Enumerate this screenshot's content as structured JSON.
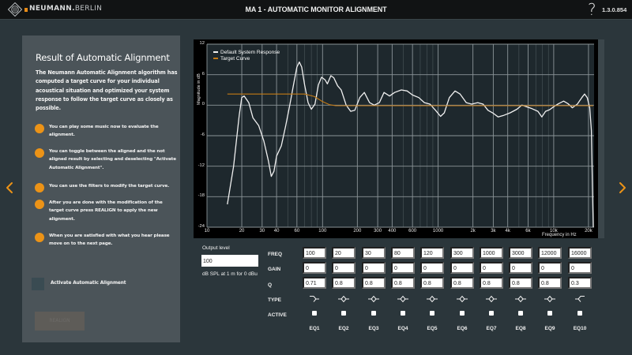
{
  "titlebar": {
    "brand_primary": "NEUMANN",
    "brand_sep": ".",
    "brand_secondary": "BERLIN",
    "title": "MA 1 - AUTOMATIC MONITOR ALIGNMENT",
    "help_label": "?",
    "version": "1.3.0.854"
  },
  "colors": {
    "accent": "#ec9317",
    "panel_bg": "#4b5459",
    "page_bg": "#2b363b",
    "titlebar_bg": "#111314",
    "chart_bg": "#1e282d",
    "response_curve": "#f0f0f0",
    "target_curve": "#c47a14"
  },
  "nav": {
    "prev_icon": "chevron-left-icon",
    "next_icon": "chevron-right-icon"
  },
  "panel": {
    "title": "Result of Automatic Alignment",
    "intro": "The Neumann Automatic Alignment algorithm has computed a target curve for your individual acoustical situation and optimized your system response to follow the target curve as closely as possible.",
    "hints": [
      "You can play some music now to evaluate the alignment.",
      "You can toggle between the aligned and the not aligned result by selecting and deselecting \"Activate Automatic Alignment\".",
      "You can use the filters to modify the target curve.",
      "After you are done with the modification of the target curve press REALIGN to apply the new alignment.",
      "When you are satisfied with what you hear please move on to the next page."
    ],
    "activate_label": "Activate Automatic Alignment",
    "activate_checked": false,
    "realign_label": "REALIGN",
    "realign_enabled": false
  },
  "chart_data": {
    "type": "line",
    "title": "",
    "xlabel": "Frequency in Hz",
    "ylabel": "Magnitude in dB",
    "x_scale": "log",
    "xlim": [
      10,
      22000
    ],
    "ylim": [
      -24,
      12
    ],
    "y_ticks": [
      12,
      6,
      0,
      -6,
      -12,
      -18,
      -24
    ],
    "x_ticks": [
      "10",
      "20",
      "30",
      "40",
      "60",
      "100",
      "200",
      "300",
      "400",
      "600",
      "1000",
      "2k",
      "3k",
      "4k",
      "6k",
      "10k",
      "20k"
    ],
    "grid": true,
    "legend_position": "top-left",
    "series": [
      {
        "name": "Default System Response",
        "color": "#f0f0f0",
        "points": [
          [
            15,
            -19.5
          ],
          [
            17,
            -12
          ],
          [
            19,
            -2
          ],
          [
            20,
            1.5
          ],
          [
            21,
            1.8
          ],
          [
            23,
            0.5
          ],
          [
            25,
            -2.5
          ],
          [
            28,
            -4
          ],
          [
            31,
            -7
          ],
          [
            34,
            -11
          ],
          [
            36,
            -14
          ],
          [
            38,
            -13
          ],
          [
            40,
            -10
          ],
          [
            44,
            -8
          ],
          [
            48,
            -4
          ],
          [
            52,
            0
          ],
          [
            56,
            4
          ],
          [
            60,
            7.5
          ],
          [
            63,
            8.5
          ],
          [
            66,
            7.5
          ],
          [
            70,
            4
          ],
          [
            75,
            0.5
          ],
          [
            80,
            -0.8
          ],
          [
            86,
            0.2
          ],
          [
            92,
            4
          ],
          [
            98,
            5.5
          ],
          [
            105,
            5
          ],
          [
            110,
            4.2
          ],
          [
            118,
            5.8
          ],
          [
            125,
            5.4
          ],
          [
            135,
            3.8
          ],
          [
            145,
            3
          ],
          [
            160,
            0
          ],
          [
            175,
            -1.2
          ],
          [
            190,
            -1
          ],
          [
            210,
            1.5
          ],
          [
            230,
            2.5
          ],
          [
            255,
            0.5
          ],
          [
            280,
            0
          ],
          [
            310,
            0.5
          ],
          [
            340,
            2.5
          ],
          [
            380,
            1.8
          ],
          [
            420,
            2.5
          ],
          [
            480,
            3
          ],
          [
            540,
            2.8
          ],
          [
            600,
            2
          ],
          [
            680,
            1.5
          ],
          [
            760,
            0.5
          ],
          [
            850,
            0.2
          ],
          [
            950,
            -1
          ],
          [
            1050,
            -2.2
          ],
          [
            1130,
            -1.5
          ],
          [
            1250,
            1.5
          ],
          [
            1400,
            2.8
          ],
          [
            1550,
            2.2
          ],
          [
            1750,
            0.5
          ],
          [
            1950,
            0.2
          ],
          [
            2200,
            0.5
          ],
          [
            2450,
            0.2
          ],
          [
            2700,
            -1
          ],
          [
            3000,
            -1.6
          ],
          [
            3300,
            -2.3
          ],
          [
            3700,
            -2
          ],
          [
            4200,
            -1.5
          ],
          [
            4800,
            -0.8
          ],
          [
            5300,
            0
          ],
          [
            5800,
            -0.3
          ],
          [
            6500,
            -0.7
          ],
          [
            7300,
            -1.2
          ],
          [
            7900,
            -2.3
          ],
          [
            8500,
            -1.2
          ],
          [
            9200,
            -0.9
          ],
          [
            10000,
            -0.3
          ],
          [
            11000,
            0.3
          ],
          [
            12200,
            0.8
          ],
          [
            13300,
            0.3
          ],
          [
            14500,
            -0.5
          ],
          [
            16000,
            0.2
          ],
          [
            17500,
            1.5
          ],
          [
            18500,
            2.2
          ],
          [
            19500,
            1.5
          ],
          [
            20500,
            -0.5
          ],
          [
            21200,
            -5
          ],
          [
            21600,
            -15
          ],
          [
            22000,
            -24
          ]
        ]
      },
      {
        "name": "Target Curve",
        "color": "#c47a14",
        "points": [
          [
            15,
            2.2
          ],
          [
            20,
            2.2
          ],
          [
            40,
            2.2
          ],
          [
            70,
            2.2
          ],
          [
            85,
            1.7
          ],
          [
            100,
            0.7
          ],
          [
            115,
            0.1
          ],
          [
            130,
            -0.1
          ],
          [
            200,
            -0.1
          ],
          [
            1000,
            -0.1
          ],
          [
            10000,
            -0.1
          ],
          [
            22000,
            -0.1
          ]
        ]
      }
    ]
  },
  "output": {
    "label": "Output level",
    "value": "100",
    "unit": "dB SPL at 1 m for 0 dBu"
  },
  "eq": {
    "row_labels": {
      "freq": "FREQ",
      "gain": "GAIN",
      "q": "Q",
      "type": "TYPE",
      "active": "ACTIVE"
    },
    "bands": [
      {
        "name": "EQ1",
        "freq": "100",
        "gain": "0",
        "q": "0.71",
        "type": "high-pass-icon",
        "active": false
      },
      {
        "name": "EQ2",
        "freq": "20",
        "gain": "0",
        "q": "0.8",
        "type": "peak-icon",
        "active": false
      },
      {
        "name": "EQ3",
        "freq": "30",
        "gain": "0",
        "q": "0.8",
        "type": "peak-icon",
        "active": false
      },
      {
        "name": "EQ4",
        "freq": "80",
        "gain": "0",
        "q": "0.8",
        "type": "peak-icon",
        "active": false
      },
      {
        "name": "EQ5",
        "freq": "120",
        "gain": "0",
        "q": "0.8",
        "type": "peak-icon",
        "active": false
      },
      {
        "name": "EQ6",
        "freq": "300",
        "gain": "0",
        "q": "0.8",
        "type": "peak-icon",
        "active": false
      },
      {
        "name": "EQ7",
        "freq": "1000",
        "gain": "0",
        "q": "0.8",
        "type": "peak-icon",
        "active": false
      },
      {
        "name": "EQ8",
        "freq": "3000",
        "gain": "0",
        "q": "0.8",
        "type": "peak-icon",
        "active": false
      },
      {
        "name": "EQ9",
        "freq": "12000",
        "gain": "0",
        "q": "0.8",
        "type": "peak-icon",
        "active": false
      },
      {
        "name": "EQ10",
        "freq": "16000",
        "gain": "0",
        "q": "0.3",
        "type": "high-shelf-icon",
        "active": false
      }
    ]
  }
}
